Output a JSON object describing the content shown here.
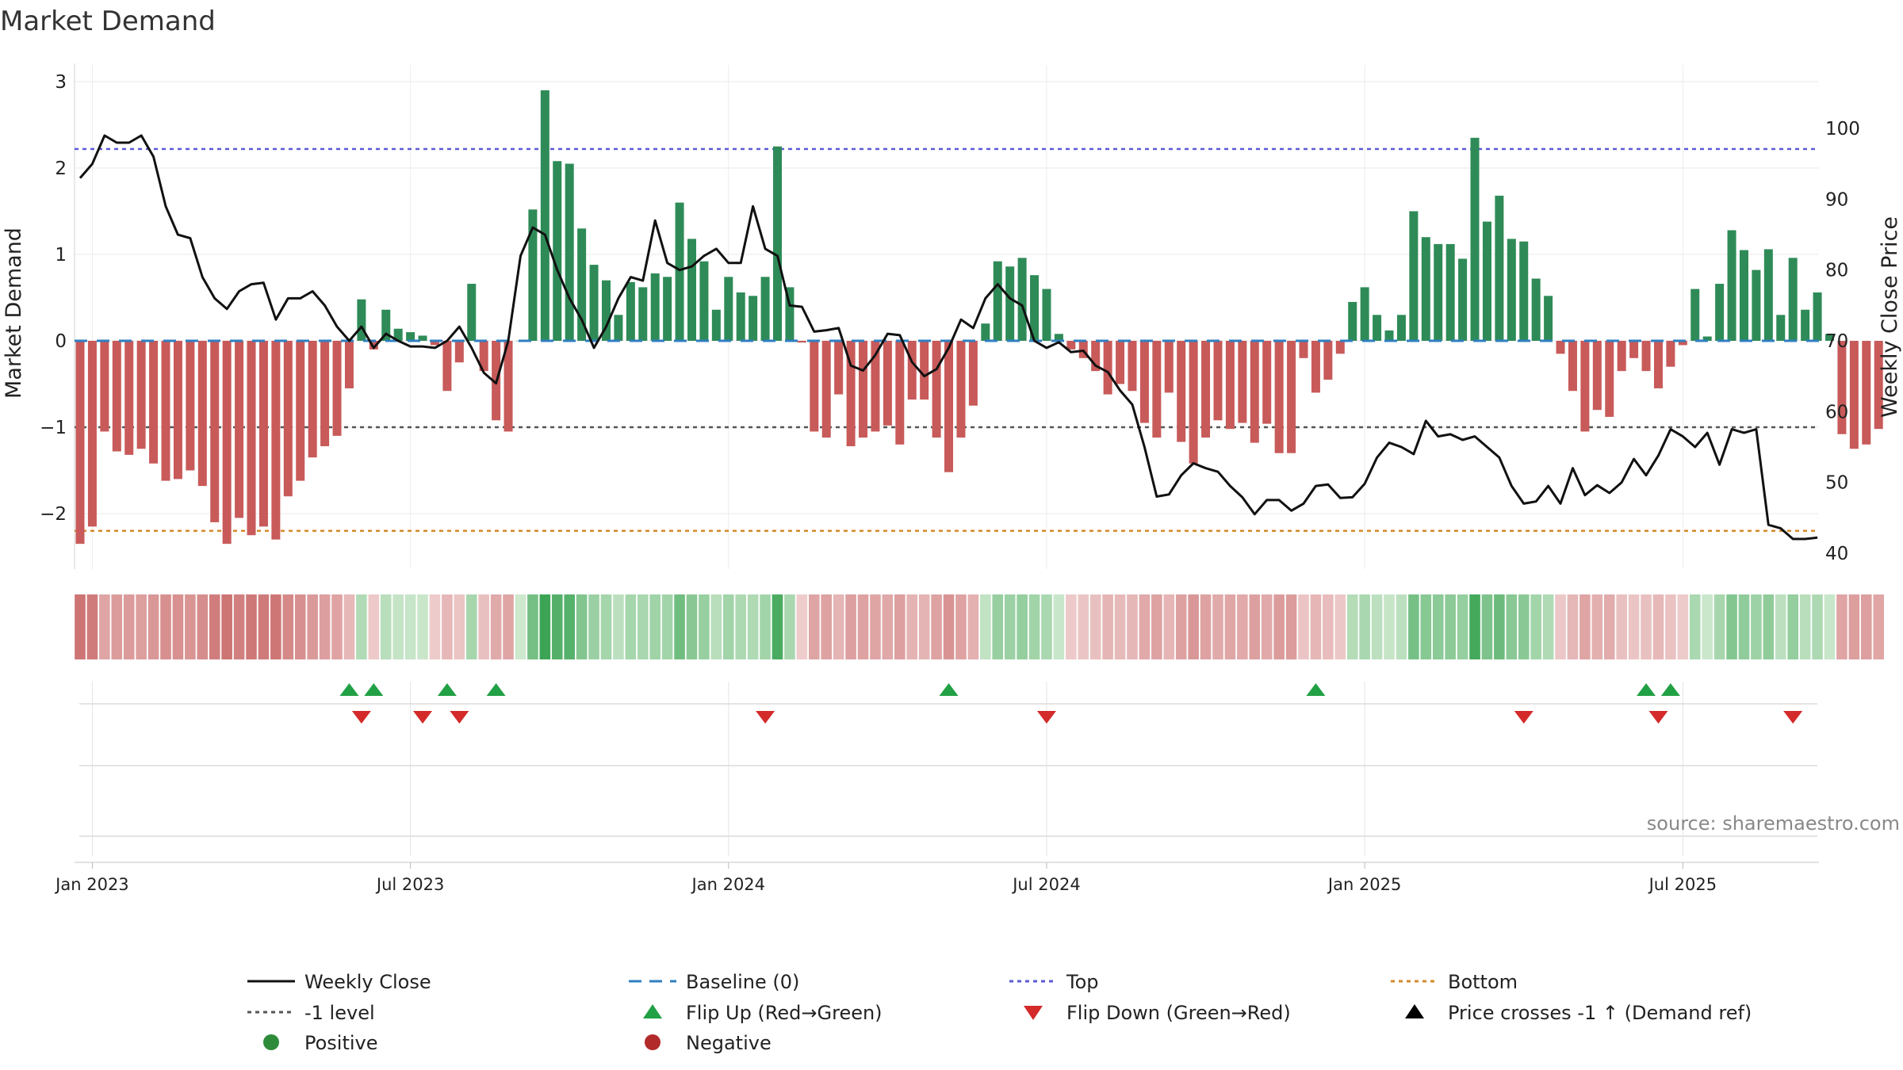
{
  "chart_data": {
    "type": "bar",
    "title": "Market Demand",
    "ylabel_left": "Market Demand",
    "ylabel_right": "Weekly Close Price",
    "y_left_range": [
      -2.6,
      3.2
    ],
    "y_left_ticks": [
      "3",
      "2",
      "1",
      "0",
      "−1",
      "−2"
    ],
    "y_right_range": [
      39,
      106
    ],
    "y_right_ticks": [
      "100",
      "90",
      "80",
      "70",
      "60",
      "50",
      "40"
    ],
    "levels": {
      "top": 2.22,
      "bottom": -2.2,
      "minus_one": -1.0,
      "baseline": 0
    },
    "x_tick_labels": [
      "Jan 2023",
      "Jul 2023",
      "Jan 2024",
      "Jul 2024",
      "Jan 2025",
      "Jul 2025"
    ],
    "x_tick_week_index": [
      1,
      27,
      53,
      79,
      105,
      131
    ],
    "demand": [
      -2.35,
      -2.15,
      -1.05,
      -1.28,
      -1.32,
      -1.25,
      -1.42,
      -1.62,
      -1.6,
      -1.5,
      -1.68,
      -2.1,
      -2.35,
      -2.05,
      -2.25,
      -2.15,
      -2.3,
      -1.8,
      -1.62,
      -1.35,
      -1.22,
      -1.1,
      -0.55,
      0.48,
      -0.1,
      0.36,
      0.14,
      0.1,
      0.06,
      -0.05,
      -0.58,
      -0.25,
      0.66,
      -0.35,
      -0.92,
      -1.05,
      0.0,
      1.52,
      2.9,
      2.08,
      2.05,
      1.3,
      0.88,
      0.7,
      0.3,
      0.68,
      0.62,
      0.78,
      0.74,
      1.6,
      1.18,
      0.92,
      0.36,
      0.74,
      0.56,
      0.52,
      0.74,
      2.25,
      0.62,
      -0.02,
      -1.05,
      -1.12,
      -0.62,
      -1.22,
      -1.12,
      -1.05,
      -0.98,
      -1.2,
      -0.68,
      -0.68,
      -1.12,
      -1.52,
      -1.12,
      -0.75,
      0.2,
      0.92,
      0.86,
      0.96,
      0.76,
      0.6,
      0.08,
      -0.1,
      -0.2,
      -0.35,
      -0.62,
      -0.5,
      -0.58,
      -0.95,
      -1.12,
      -0.6,
      -1.17,
      -1.42,
      -1.12,
      -0.92,
      -1.02,
      -0.95,
      -1.18,
      -0.96,
      -1.3,
      -1.3,
      -0.2,
      -0.6,
      -0.45,
      -0.15,
      0.45,
      0.62,
      0.3,
      0.12,
      0.3,
      1.5,
      1.2,
      1.12,
      1.12,
      0.95,
      2.35,
      1.38,
      1.68,
      1.18,
      1.15,
      0.72,
      0.52,
      -0.15,
      -0.58,
      -1.05,
      -0.8,
      -0.88,
      -0.35,
      -0.2,
      -0.35,
      -0.55,
      -0.3,
      -0.05,
      0.6,
      0.05,
      0.66,
      1.28,
      1.05,
      0.82,
      1.06,
      0.3,
      0.96,
      0.36,
      0.56,
      0.08,
      -1.08,
      -1.25,
      -1.2,
      -1.02
    ],
    "weekly_close": [
      93,
      95,
      99,
      98,
      98,
      99,
      96,
      89,
      85,
      84.5,
      79,
      76,
      74.5,
      77,
      78,
      78.2,
      73,
      76,
      76,
      77,
      75,
      72,
      70,
      72,
      69,
      71,
      70,
      69.2,
      69.2,
      69,
      70,
      72,
      69,
      65.5,
      64,
      70,
      82,
      86,
      85,
      80,
      76,
      73,
      69,
      72,
      76,
      79,
      78.5,
      87,
      81,
      80,
      80.5,
      82,
      83,
      81,
      81,
      89,
      83,
      82,
      75,
      74.8,
      71.3,
      71.5,
      71.8,
      66.5,
      65.8,
      68,
      71,
      70.8,
      67,
      65,
      66,
      69,
      73,
      71.8,
      76,
      78,
      76,
      75,
      70,
      69,
      69.8,
      68.4,
      68.6,
      66.5,
      65.6,
      63,
      61,
      55,
      48,
      48.3,
      51,
      52.7,
      52,
      51.5,
      49.5,
      47.9,
      45.5,
      47.5,
      47.5,
      46,
      47,
      49.5,
      49.7,
      47.8,
      47.9,
      49.8,
      53.5,
      55.6,
      55,
      54,
      58.7,
      56.5,
      56.8,
      56,
      56.5,
      55,
      53.5,
      49.5,
      47,
      47.3,
      49.5,
      47,
      52,
      48.2,
      49.6,
      48.5,
      50,
      53.3,
      51,
      53.8,
      57.5,
      56.5,
      55,
      57,
      52.5,
      57.5,
      57,
      57.5,
      44,
      43.5,
      42,
      42,
      42.2
    ],
    "flip_up_weeks": [
      22,
      24,
      30,
      34,
      71,
      101,
      128,
      130
    ],
    "flip_down_weeks": [
      23,
      28,
      31,
      56,
      79,
      118,
      129,
      140
    ],
    "source_text": "source: sharemaestro.com",
    "legend": [
      {
        "key": "close",
        "label": "Weekly Close",
        "color": "#111111"
      },
      {
        "key": "baseline",
        "label": "Baseline (0)",
        "color": "#2f7fc1"
      },
      {
        "key": "top",
        "label": "Top",
        "color": "#5b5bd6"
      },
      {
        "key": "bottom",
        "label": "Bottom",
        "color": "#d4892a"
      },
      {
        "key": "minus1",
        "label": "-1 level",
        "color": "#555555"
      },
      {
        "key": "flipup",
        "label": "Flip Up (Red→Green)",
        "color": "#22a045"
      },
      {
        "key": "flipdown",
        "label": "Flip Down (Green→Red)",
        "color": "#d42a2a"
      },
      {
        "key": "pricecross",
        "label": "Price crosses -1 ↑ (Demand ref)",
        "color": "#000000"
      },
      {
        "key": "positive",
        "label": "Positive",
        "color": "#2e8b3a"
      },
      {
        "key": "negative",
        "label": "Negative",
        "color": "#b22a2a"
      }
    ],
    "colors": {
      "bar_positive": "#2e8b57",
      "bar_negative": "#c85a5a",
      "flip_up": "#22a045",
      "flip_down": "#d42a2a"
    }
  }
}
